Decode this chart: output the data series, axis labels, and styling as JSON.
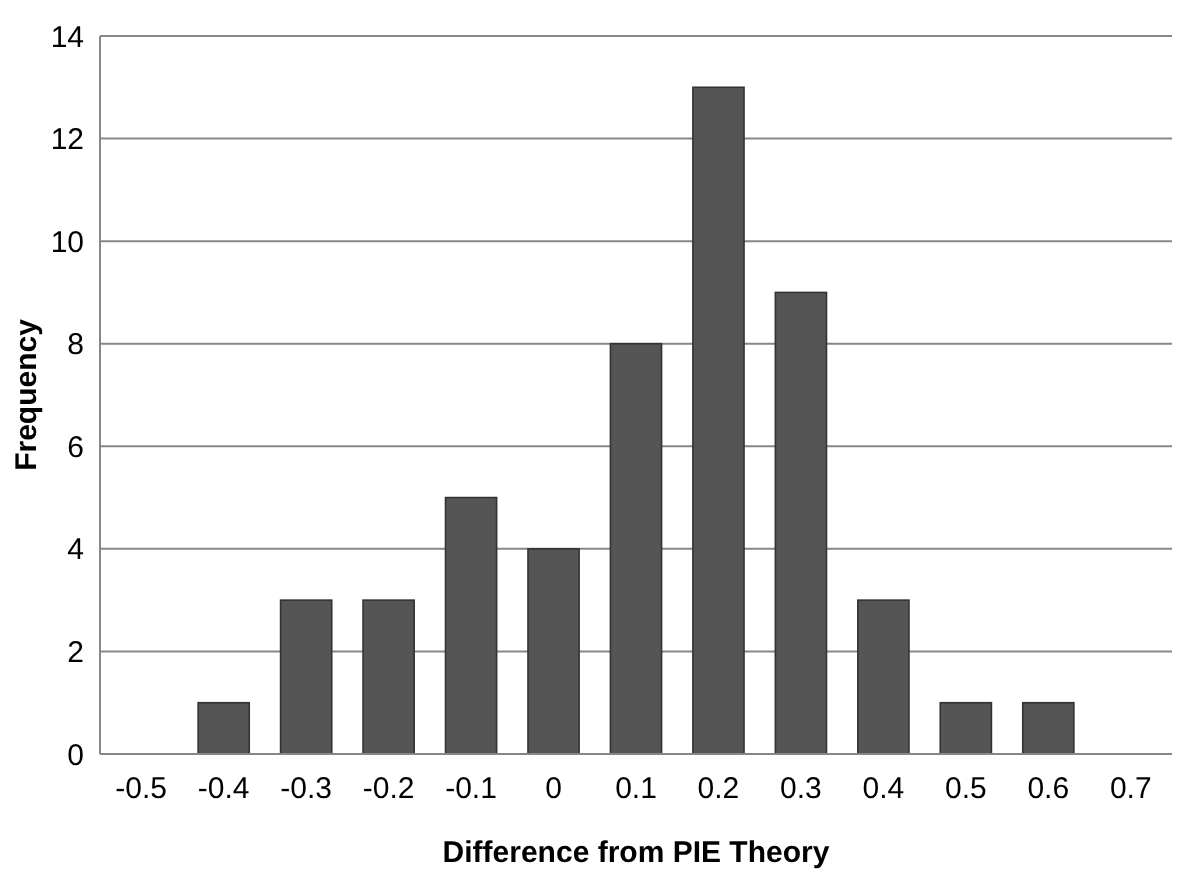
{
  "chart_data": {
    "type": "bar",
    "xlabel": "Difference from PIE Theory",
    "ylabel": "Frequency",
    "categories": [
      "-0.5",
      "-0.4",
      "-0.3",
      "-0.2",
      "-0.1",
      "0",
      "0.1",
      "0.2",
      "0.3",
      "0.4",
      "0.5",
      "0.6",
      "0.7"
    ],
    "values": [
      0,
      1,
      3,
      3,
      5,
      4,
      8,
      13,
      9,
      3,
      1,
      1,
      0
    ],
    "color": "#555555",
    "ylim": [
      0,
      14
    ],
    "yticks": [
      0,
      2,
      4,
      6,
      8,
      10,
      12,
      14
    ],
    "grid": "y"
  }
}
